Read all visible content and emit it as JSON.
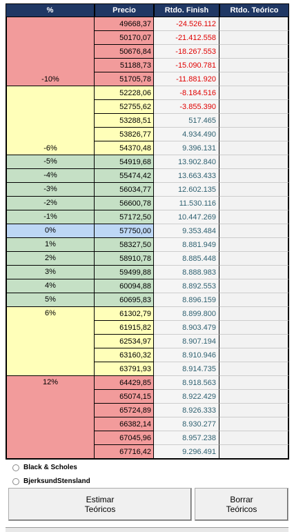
{
  "table": {
    "header": [
      "%",
      "Precio",
      "Rtdo. Finish",
      "Rtdo. Teórico"
    ],
    "groups": [
      {
        "label": "-10%",
        "label_align": "bottom",
        "color": "#f29b9b",
        "rows": [
          [
            "49668,37",
            "-24.526.112"
          ],
          [
            "50170,07",
            "-21.412.558"
          ],
          [
            "50676,84",
            "-18.267.553"
          ],
          [
            "51188,73",
            "-15.090.781"
          ],
          [
            "51705,78",
            "-11.881.920"
          ]
        ]
      },
      {
        "label": "-6%",
        "label_align": "bottom",
        "color": "#ffffb9",
        "rows": [
          [
            "52228,06",
            "-8.184.516"
          ],
          [
            "52755,62",
            "-3.855.390"
          ],
          [
            "53288,51",
            "517.465"
          ],
          [
            "53826,77",
            "4.934.490"
          ],
          [
            "54370,48",
            "9.396.131"
          ]
        ]
      },
      {
        "label": "-5%",
        "label_align": "top",
        "color": "#c5e0c5",
        "rows": [
          [
            "54919,68",
            "13.902.840"
          ]
        ]
      },
      {
        "label": "-4%",
        "label_align": "top",
        "color": "#c5e0c5",
        "rows": [
          [
            "55474,42",
            "13.663.433"
          ]
        ]
      },
      {
        "label": "-3%",
        "label_align": "top",
        "color": "#c5e0c5",
        "rows": [
          [
            "56034,77",
            "12.602.135"
          ]
        ]
      },
      {
        "label": "-2%",
        "label_align": "top",
        "color": "#c5e0c5",
        "rows": [
          [
            "56600,78",
            "11.530.116"
          ]
        ]
      },
      {
        "label": "-1%",
        "label_align": "top",
        "color": "#c5e0c5",
        "rows": [
          [
            "57172,50",
            "10.447.269"
          ]
        ]
      },
      {
        "label": "0%",
        "label_align": "top",
        "color": "#bdd7f5",
        "rows": [
          [
            "57750,00",
            "9.353.484"
          ]
        ]
      },
      {
        "label": "1%",
        "label_align": "top",
        "color": "#c5e0c5",
        "rows": [
          [
            "58327,50",
            "8.881.949"
          ]
        ]
      },
      {
        "label": "2%",
        "label_align": "top",
        "color": "#c5e0c5",
        "rows": [
          [
            "58910,78",
            "8.885.448"
          ]
        ]
      },
      {
        "label": "3%",
        "label_align": "top",
        "color": "#c5e0c5",
        "rows": [
          [
            "59499,88",
            "8.888.983"
          ]
        ]
      },
      {
        "label": "4%",
        "label_align": "top",
        "color": "#c5e0c5",
        "rows": [
          [
            "60094,88",
            "8.892.553"
          ]
        ]
      },
      {
        "label": "5%",
        "label_align": "top",
        "color": "#c5e0c5",
        "rows": [
          [
            "60695,83",
            "8.896.159"
          ]
        ]
      },
      {
        "label": "6%",
        "label_align": "top",
        "color": "#ffffb9",
        "rows": [
          [
            "61302,79",
            "8.899.800"
          ],
          [
            "61915,82",
            "8.903.479"
          ],
          [
            "62534,97",
            "8.907.194"
          ],
          [
            "63160,32",
            "8.910.946"
          ],
          [
            "63791,93",
            "8.914.735"
          ]
        ]
      },
      {
        "label": "12%",
        "label_align": "top",
        "color": "#f29b9b",
        "rows": [
          [
            "64429,85",
            "8.918.563"
          ],
          [
            "65074,15",
            "8.922.429"
          ],
          [
            "65724,89",
            "8.926.333"
          ],
          [
            "66382,14",
            "8.930.277"
          ],
          [
            "67045,96",
            "8.957.238"
          ],
          [
            "67716,42",
            "9.296.491"
          ]
        ]
      }
    ]
  },
  "options": [
    "Black & Scholes",
    "BjerksundStensland"
  ],
  "buttons": [
    {
      "lines": [
        "Estimar",
        "Teóricos"
      ]
    },
    {
      "lines": [
        "Borrar",
        "Teóricos"
      ]
    }
  ]
}
